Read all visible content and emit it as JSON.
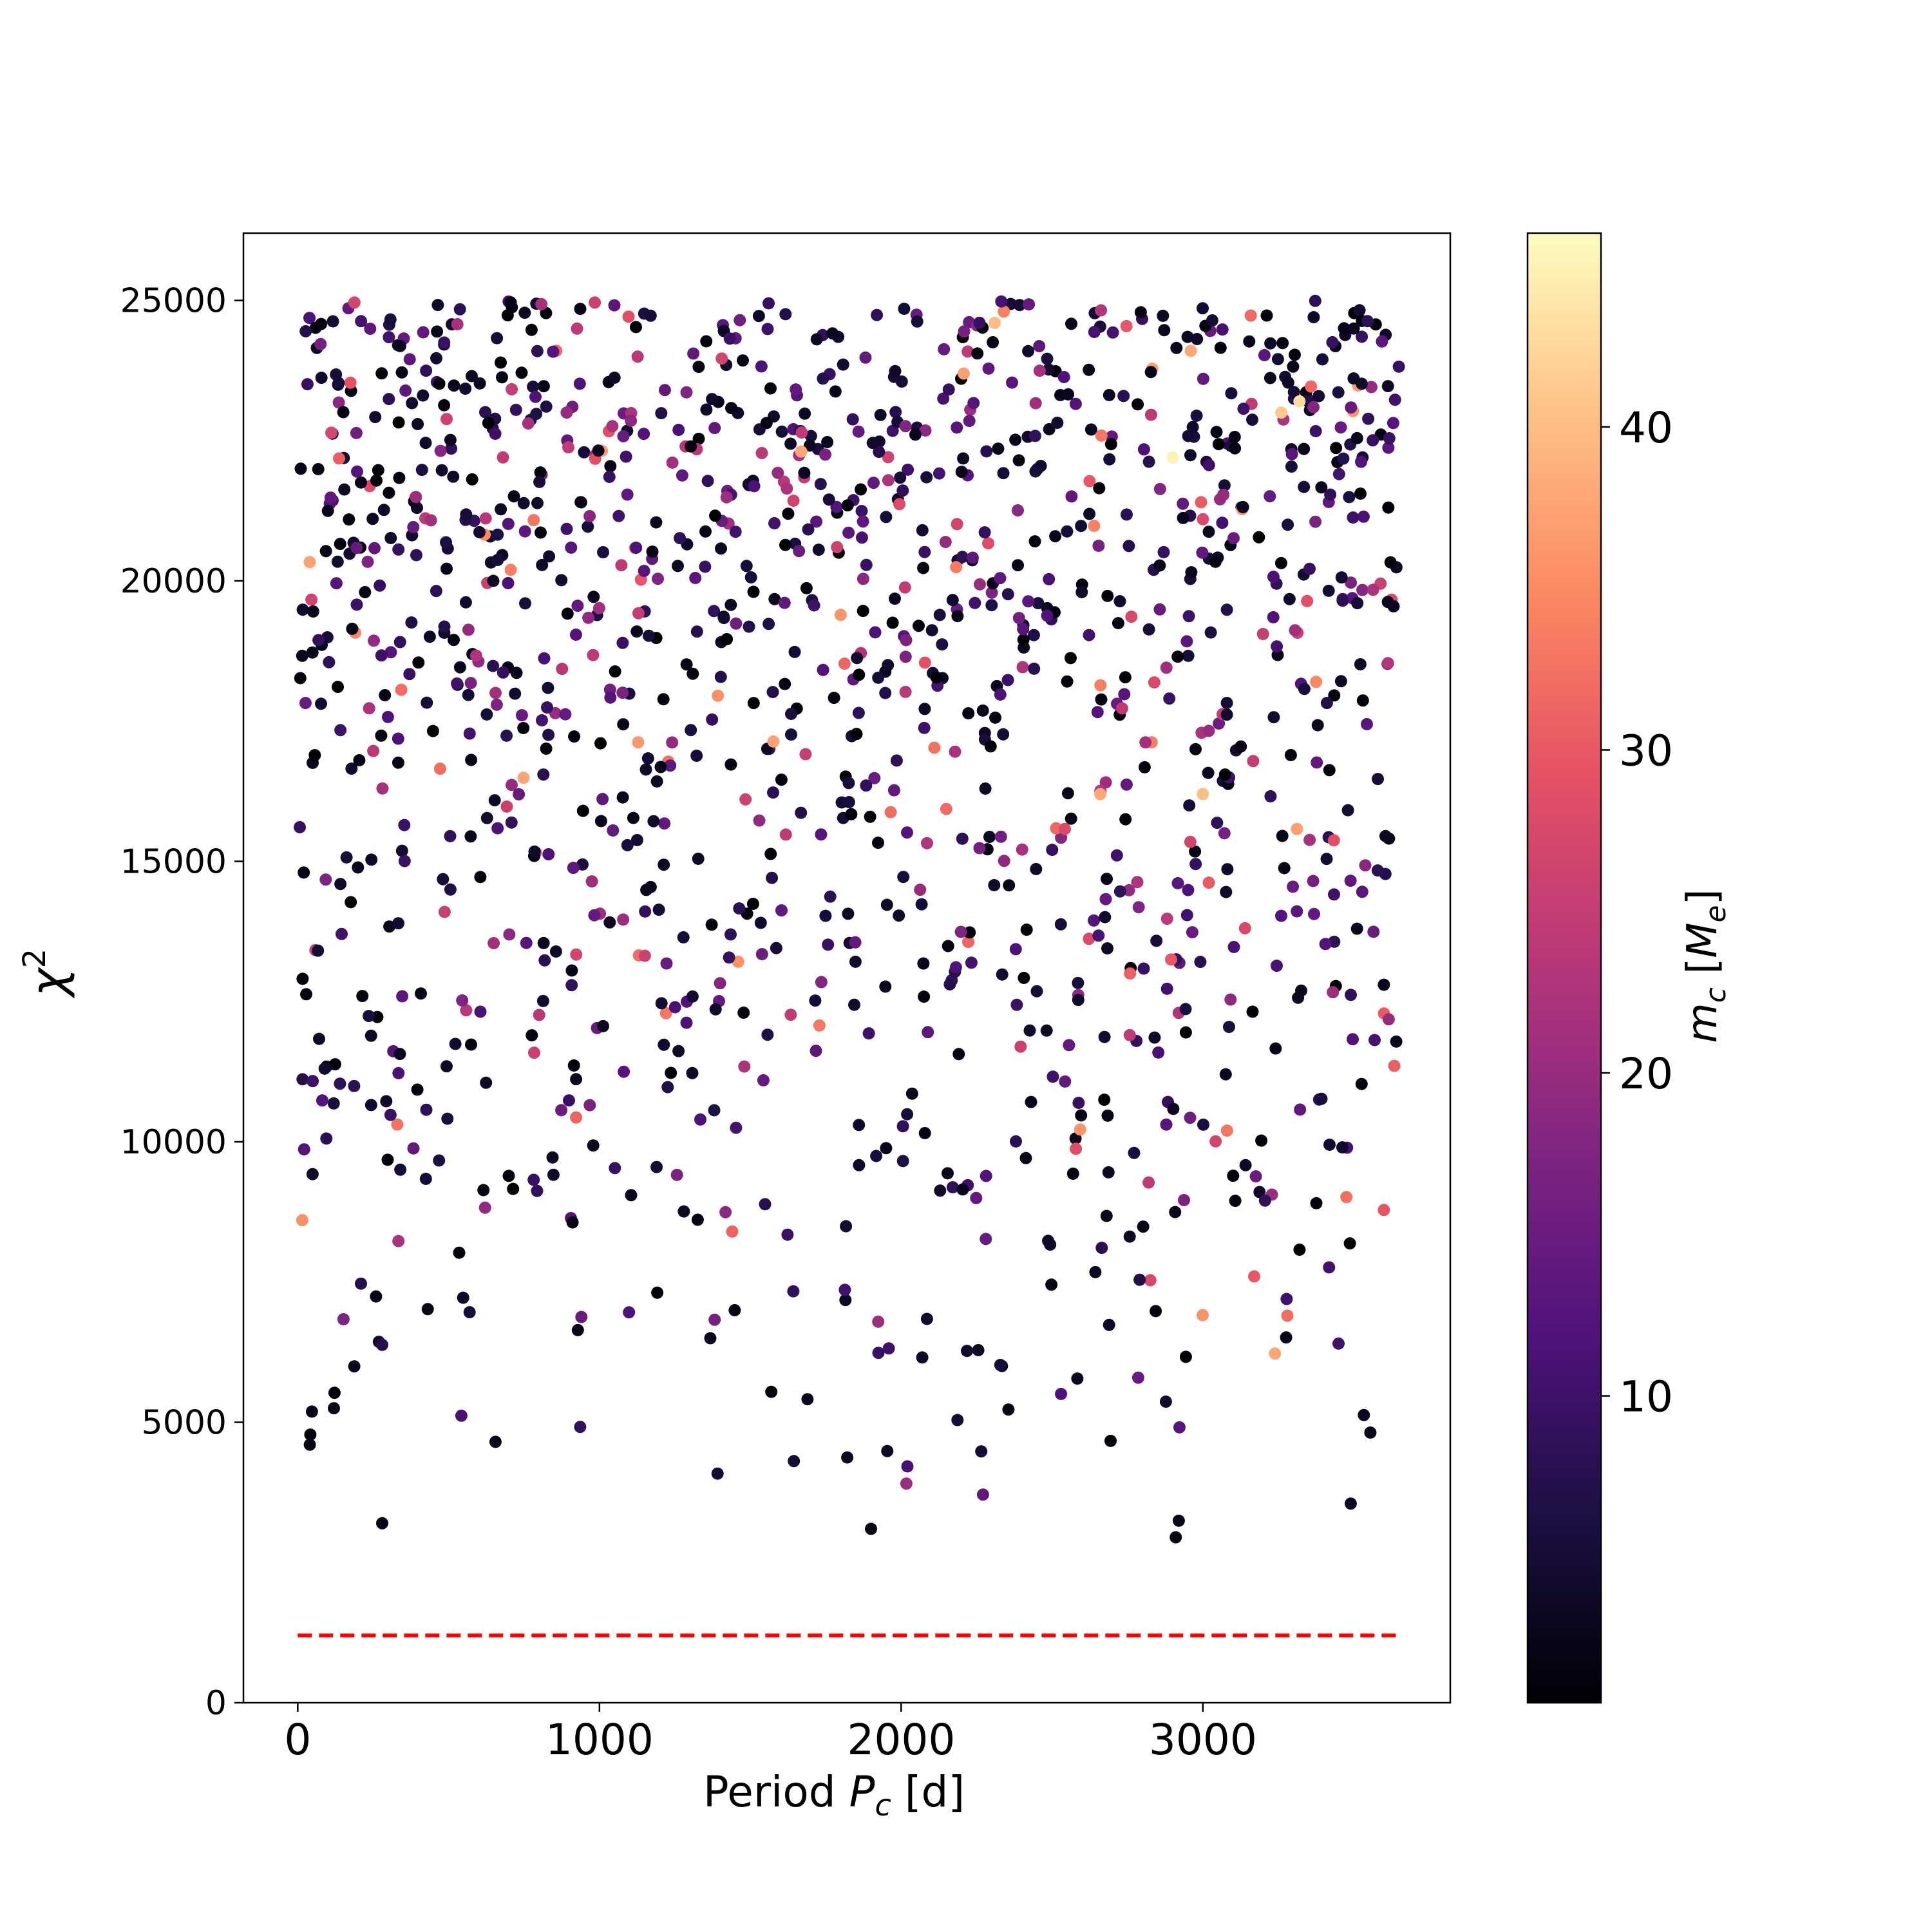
{
  "chart_data": {
    "type": "scatter",
    "xlabel": "Period $P_c$ [d]",
    "ylabel": "$\\chi^2$",
    "xlim": [
      -180,
      3820
    ],
    "ylim": [
      0,
      26200
    ],
    "xticks": [
      0,
      1000,
      2000,
      3000
    ],
    "yticks": [
      0,
      5000,
      10000,
      15000,
      20000,
      25000
    ],
    "colormap": "magma",
    "colorbar": {
      "label": "$m_c$ [$M_e$]",
      "range": [
        0.5,
        46
      ],
      "ticks": [
        10,
        20,
        30,
        40
      ]
    },
    "reference_line": {
      "style": "dashed",
      "color": "#ff0000",
      "y": 1200,
      "x_range": [
        0,
        3650
      ]
    },
    "point_distribution": {
      "count": 1400,
      "x_range": [
        0,
        3650
      ],
      "y_range": [
        2900,
        25000
      ],
      "color_value_range": [
        0.5,
        46
      ],
      "description_note": "uniformly scattered in period; density increases with chi-squared; mass mostly low (dark), few high (orange/yellow)"
    },
    "sample_points": [
      {
        "x": 10,
        "y": 22000,
        "c": 2
      },
      {
        "x": 20,
        "y": 14800,
        "c": 2
      },
      {
        "x": 40,
        "y": 4600,
        "c": 2
      },
      {
        "x": 120,
        "y": 5250,
        "c": 2
      },
      {
        "x": 280,
        "y": 3200,
        "c": 2
      },
      {
        "x": 1900,
        "y": 3100,
        "c": 2
      },
      {
        "x": 2910,
        "y": 2950,
        "c": 2
      },
      {
        "x": 3490,
        "y": 3550,
        "c": 3
      },
      {
        "x": 3280,
        "y": 6900,
        "c": 32
      },
      {
        "x": 3170,
        "y": 7600,
        "c": 30
      },
      {
        "x": 2900,
        "y": 22200,
        "c": 45
      },
      {
        "x": 3320,
        "y": 23200,
        "c": 43
      },
      {
        "x": 2310,
        "y": 24600,
        "c": 40
      },
      {
        "x": 3260,
        "y": 23000,
        "c": 41
      },
      {
        "x": 2660,
        "y": 16200,
        "c": 38
      },
      {
        "x": 3000,
        "y": 16200,
        "c": 40
      },
      {
        "x": 2960,
        "y": 24100,
        "c": 38
      },
      {
        "x": 1440,
        "y": 8400,
        "c": 31
      },
      {
        "x": 3080,
        "y": 10200,
        "c": 33
      },
      {
        "x": 1860,
        "y": 10300,
        "c": 4
      },
      {
        "x": 3600,
        "y": 12800,
        "c": 3
      },
      {
        "x": 3500,
        "y": 24500,
        "c": 3
      }
    ]
  }
}
